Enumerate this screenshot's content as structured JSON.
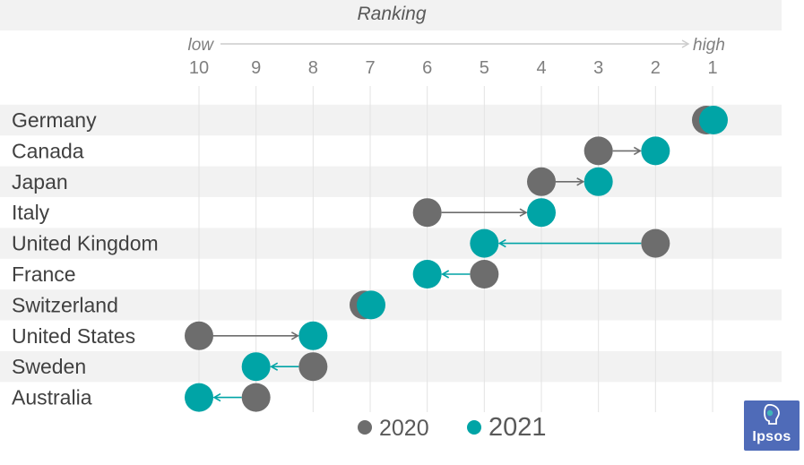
{
  "chart_data": {
    "type": "scatter",
    "title": "Ranking",
    "scale_low_label": "low",
    "scale_high_label": "high",
    "x_ticks": [
      10,
      9,
      8,
      7,
      6,
      5,
      4,
      3,
      2,
      1
    ],
    "xlim": [
      10,
      1
    ],
    "categories": [
      "Germany",
      "Canada",
      "Japan",
      "Italy",
      "United Kingdom",
      "France",
      "Switzerland",
      "United States",
      "Sweden",
      "Australia"
    ],
    "series": [
      {
        "name": "2020",
        "color": "#6d6d6d",
        "values": [
          1,
          3,
          4,
          6,
          2,
          5,
          7,
          10,
          8,
          9
        ]
      },
      {
        "name": "2021",
        "color": "#00a4a6",
        "values": [
          1,
          2,
          3,
          4,
          5,
          6,
          7,
          8,
          9,
          10
        ]
      }
    ],
    "grid": true,
    "legend_position": "bottom"
  },
  "brand": {
    "logo_text": "Ipsos",
    "color": "#4f6bb8"
  }
}
